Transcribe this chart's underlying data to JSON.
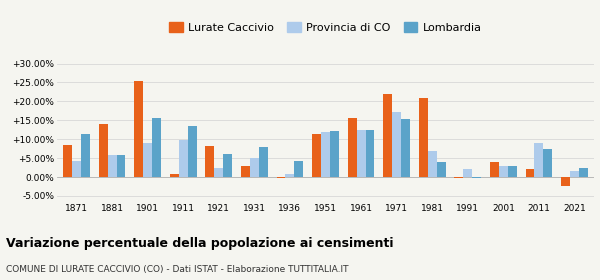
{
  "years": [
    1871,
    1881,
    1901,
    1911,
    1921,
    1931,
    1936,
    1951,
    1961,
    1971,
    1981,
    1991,
    2001,
    2011,
    2021
  ],
  "lurate": [
    8.5,
    14.0,
    25.3,
    0.8,
    8.3,
    3.0,
    -0.2,
    11.5,
    15.5,
    22.0,
    20.8,
    -0.3,
    3.9,
    2.0,
    -2.5
  ],
  "provincia": [
    4.2,
    5.7,
    9.0,
    9.8,
    2.5,
    5.0,
    0.7,
    11.8,
    12.5,
    17.2,
    7.0,
    2.1,
    2.8,
    9.0,
    1.5
  ],
  "lombardia": [
    11.5,
    5.7,
    15.7,
    13.4,
    6.0,
    8.0,
    4.3,
    12.3,
    12.5,
    15.3,
    4.1,
    -0.2,
    3.0,
    7.3,
    2.5
  ],
  "color_lurate": "#E8611A",
  "color_provincia": "#AECBEB",
  "color_lombardia": "#5BA3C9",
  "ylim_min": -6.5,
  "ylim_max": 32.0,
  "yticks": [
    -5.0,
    0.0,
    5.0,
    10.0,
    15.0,
    20.0,
    25.0,
    30.0
  ],
  "title": "Variazione percentuale della popolazione ai censimenti",
  "subtitle": "COMUNE DI LURATE CACCIVIO (CO) - Dati ISTAT - Elaborazione TUTTITALIA.IT",
  "legend_labels": [
    "Lurate Caccivio",
    "Provincia di CO",
    "Lombardia"
  ],
  "bg_color": "#f5f5f0",
  "grid_color": "#d8d8d8"
}
